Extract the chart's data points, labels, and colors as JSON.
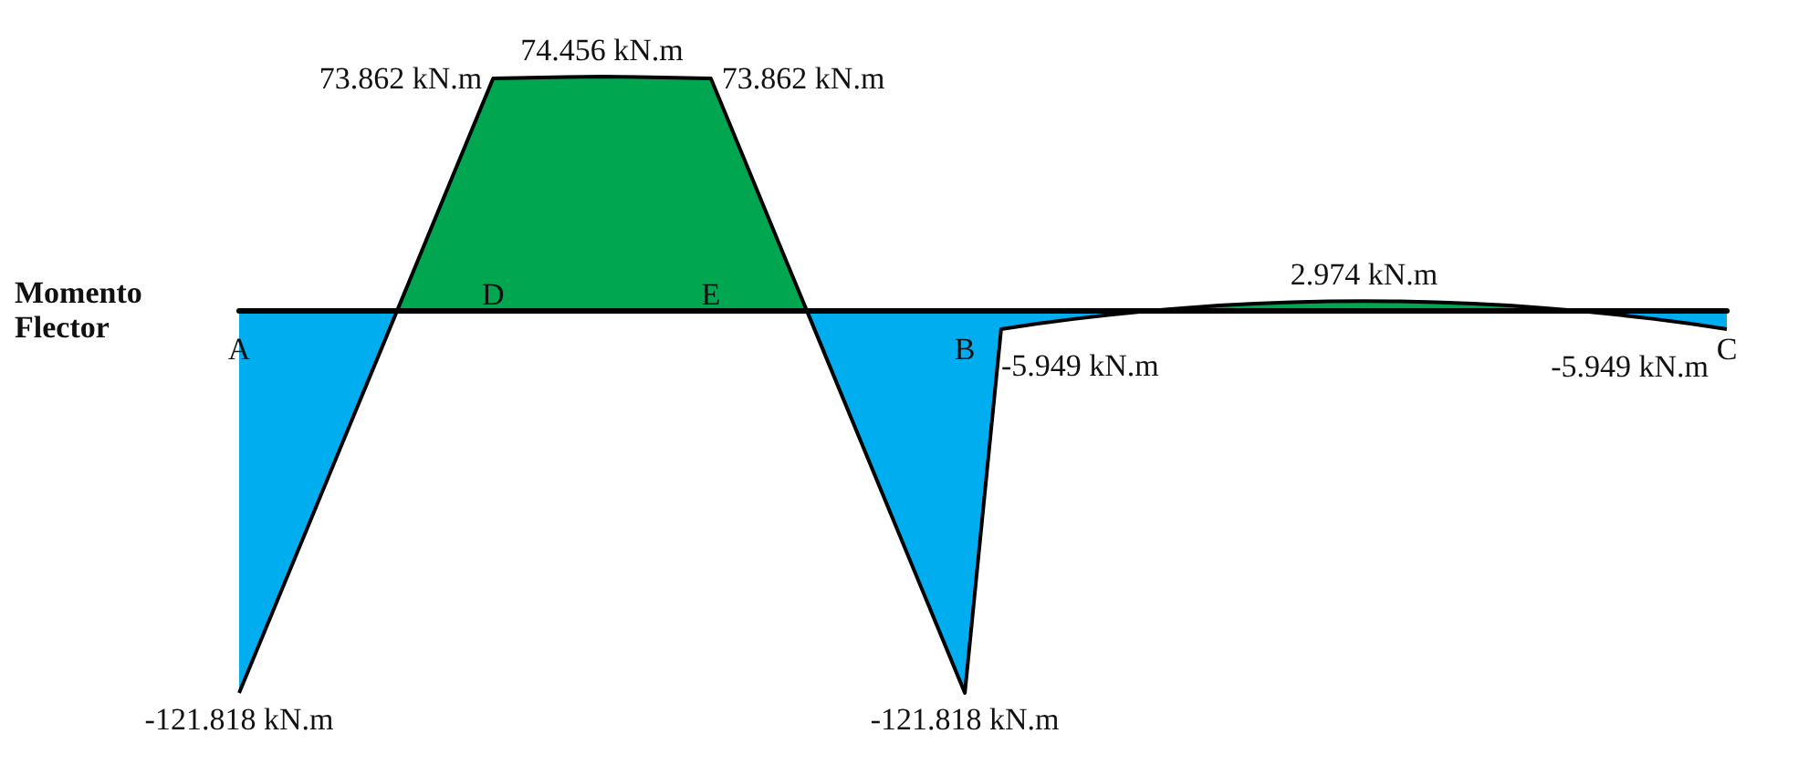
{
  "chart_data": {
    "type": "area",
    "ylabel": "Momento Flector",
    "tick_labels": "x",
    "grid": false,
    "categories": [
      "A",
      null,
      null,
      null,
      null,
      null,
      null,
      "D",
      null,
      null,
      null,
      null,
      null,
      "E",
      null,
      null,
      null,
      null,
      null,
      null,
      "B",
      null,
      null,
      null,
      null,
      null,
      null,
      null,
      null,
      null,
      null,
      null,
      null,
      null,
      null,
      null,
      null,
      null,
      null,
      null,
      null,
      "C"
    ],
    "series": [
      {
        "color": "#000000",
        "values": [
          -121.818,
          -93.9,
          -65.9,
          -37.9,
          -10.0,
          18.0,
          46.0,
          73.862,
          74.1,
          74.3,
          74.456,
          74.3,
          74.1,
          73.862,
          45.9,
          17.9,
          -10.0,
          -38.0,
          -65.9,
          -93.9,
          -121.818,
          -5.949,
          -4.25,
          -2.74,
          -1.4,
          -0.24,
          0.74,
          1.55,
          2.17,
          2.62,
          2.88,
          2.974,
          2.88,
          2.62,
          2.17,
          1.55,
          0.74,
          -0.24,
          -1.4,
          -2.74,
          -4.25,
          -5.949
        ],
        "colors": [
          "#00aeef",
          "#00aeef",
          "#00aeef",
          "#00aeef",
          "#00aeef",
          "#00a650",
          "#00a650",
          "#00a650",
          "#00a650",
          "#00a650",
          "#00a650",
          "#00a650",
          "#00a650",
          "#00a650",
          "#00a650",
          "#00a650",
          "#00aeef",
          "#00aeef",
          "#00aeef",
          "#00aeef",
          "#00aeef",
          "#00aeef",
          "#00aeef",
          "#00aeef",
          "#00aeef",
          "#00aeef",
          "#00a650",
          "#00a650",
          "#00a650",
          "#00a650",
          "#00a650",
          "#00a650",
          "#00a650",
          "#00a650",
          "#00a650",
          "#00a650",
          "#00a650",
          "#00aeef",
          "#00aeef",
          "#00aeef",
          "#00aeef",
          "#00aeef"
        ],
        "value_labels": [
          "-121.818 kN.m",
          null,
          null,
          null,
          null,
          null,
          null,
          "73.862 kN.m",
          null,
          null,
          "74.456 kN.m",
          null,
          null,
          "73.862 kN.m",
          null,
          null,
          null,
          null,
          null,
          null,
          "-121.818 kN.m",
          "-5.949 kN.m",
          null,
          null,
          null,
          null,
          null,
          null,
          null,
          null,
          null,
          "2.974 kN.m",
          null,
          null,
          null,
          null,
          null,
          null,
          null,
          null,
          null,
          "-5.949 kN.m"
        ]
      }
    ]
  }
}
